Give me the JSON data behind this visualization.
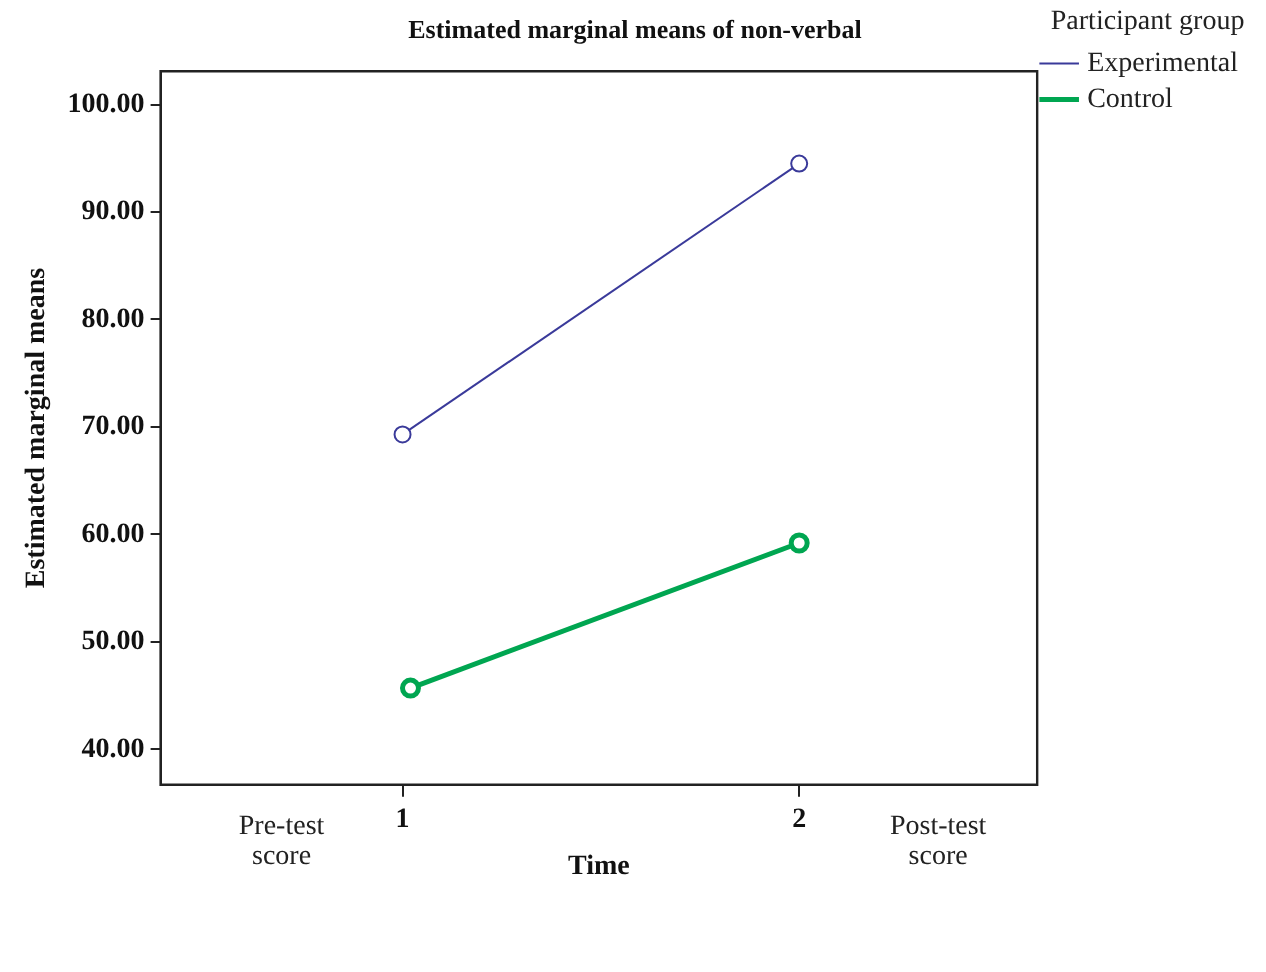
{
  "chart_data": {
    "type": "line",
    "title": "Estimated marginal means of non-verbal",
    "xlabel": "Time",
    "ylabel": "Estimated marginal means",
    "legend_title": "Participant group",
    "legend": "top right",
    "marker": "circle",
    "line_style": "solid",
    "grid": false,
    "xlim": [
      0.39,
      2.6
    ],
    "xticks": [
      1,
      2
    ],
    "ylim": [
      36.7,
      103.1
    ],
    "yticks": [
      {
        "value": 40,
        "label": "40.00"
      },
      {
        "value": 50,
        "label": "50.00"
      },
      {
        "value": 60,
        "label": "60.00"
      },
      {
        "value": 70,
        "label": "70.00"
      },
      {
        "value": 80,
        "label": "80.00"
      },
      {
        "value": 90,
        "label": "90.00"
      },
      {
        "value": 100,
        "label": "100.00"
      }
    ],
    "series": [
      {
        "name": "Experimental",
        "color": "#3a3a9a",
        "x": [
          1,
          2
        ],
        "values": [
          69.3,
          94.5
        ]
      },
      {
        "name": "Control",
        "color": "#00a651",
        "x": [
          1.02,
          2
        ],
        "values": [
          45.7,
          59.2
        ]
      }
    ],
    "annotations": [
      "Pre-test score",
      "Post-test score"
    ]
  }
}
